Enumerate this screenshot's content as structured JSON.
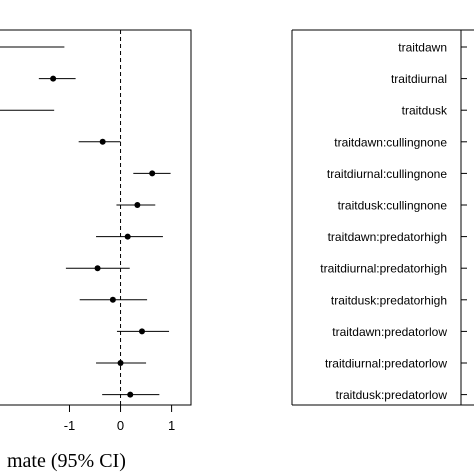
{
  "chart_data": {
    "type": "scatter",
    "subtype": "forest-plot",
    "xlabel": "mate (95% CI)",
    "xticks": [
      -1,
      0,
      1
    ],
    "xlim": [
      -2.4,
      1.38
    ],
    "reference_line": 0,
    "points": [
      {
        "estimate": null,
        "lower": null,
        "upper": -1.1
      },
      {
        "estimate": -1.32,
        "lower": -1.6,
        "upper": -0.88
      },
      {
        "estimate": null,
        "lower": null,
        "upper": -1.3
      },
      {
        "estimate": -0.35,
        "lower": -0.82,
        "upper": 0.0
      },
      {
        "estimate": 0.62,
        "lower": 0.25,
        "upper": 0.98
      },
      {
        "estimate": 0.33,
        "lower": -0.08,
        "upper": 0.68
      },
      {
        "estimate": 0.14,
        "lower": -0.48,
        "upper": 0.83
      },
      {
        "estimate": -0.45,
        "lower": -1.07,
        "upper": 0.18
      },
      {
        "estimate": -0.15,
        "lower": -0.8,
        "upper": 0.52
      },
      {
        "estimate": 0.42,
        "lower": -0.07,
        "upper": 0.95
      },
      {
        "estimate": 0.0,
        "lower": -0.48,
        "upper": 0.5
      },
      {
        "estimate": 0.19,
        "lower": -0.36,
        "upper": 0.76
      }
    ]
  },
  "right_panel": {
    "labels": [
      "traitdawn",
      "traitdiurnal",
      "traitdusk",
      "traitdawn:cullingnone",
      "traitdiurnal:cullingnone",
      "traitdusk:cullingnone",
      "traitdawn:predatorhigh",
      "traitdiurnal:predatorhigh",
      "traitdusk:predatorhigh",
      "traitdawn:predatorlow",
      "traitdiurnal:predatorlow",
      "traitdusk:predatorlow"
    ]
  }
}
